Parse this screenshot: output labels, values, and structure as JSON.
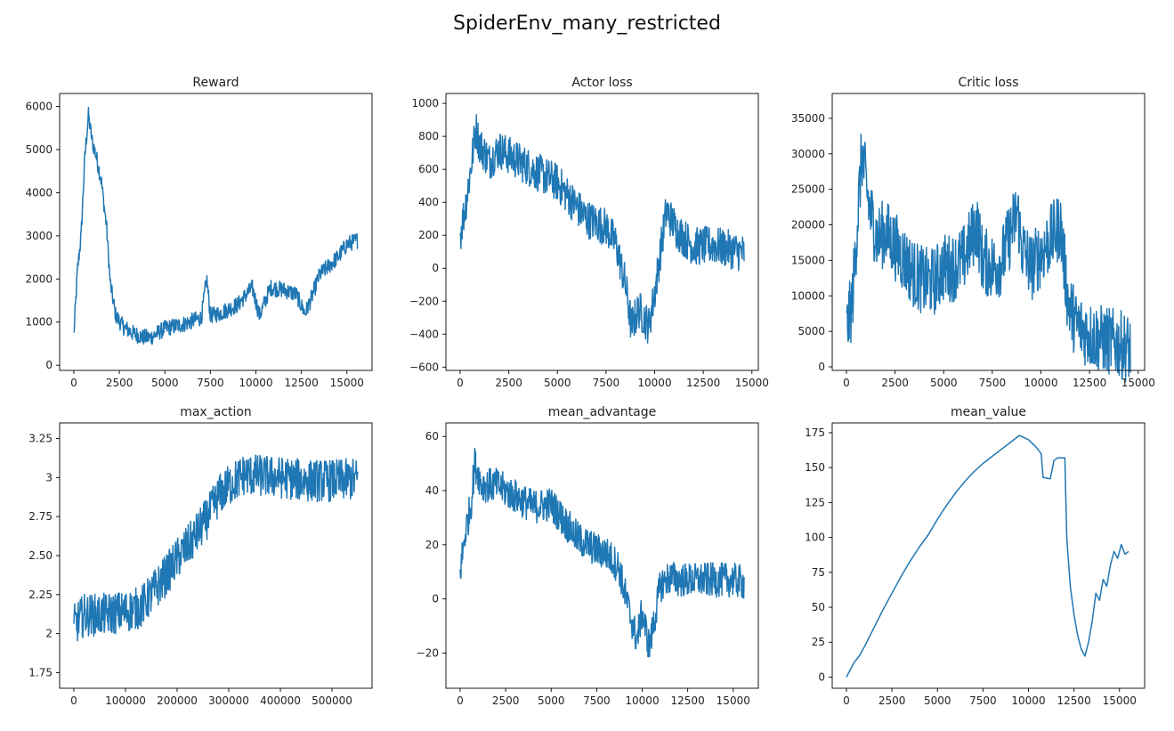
{
  "figure_title": "SpiderEnv_many_restricted",
  "colors": {
    "line": "#1f77b4",
    "axis": "#000000"
  },
  "chart_data": [
    {
      "type": "line",
      "title": "Reward",
      "xlabel": "",
      "ylabel": "",
      "xlim": [
        -780,
        16380
      ],
      "ylim": [
        -120,
        6300
      ],
      "xticks": [
        0,
        2500,
        5000,
        7500,
        10000,
        12500,
        15000
      ],
      "yticks": [
        0,
        1000,
        2000,
        3000,
        4000,
        5000,
        6000
      ],
      "noise": 0.06,
      "series": [
        {
          "x": [
            0,
            200,
            400,
            600,
            800,
            1000,
            1200,
            1500,
            1800,
            2000,
            2300,
            2700,
            3200,
            3800,
            4200,
            5000,
            6000,
            7000,
            7300,
            7500,
            8000,
            9000,
            9800,
            10200,
            10800,
            11500,
            12200,
            12700,
            13000,
            13500,
            14000,
            14500,
            15000,
            15600
          ],
          "y": [
            700,
            2200,
            3000,
            4800,
            5800,
            5200,
            4900,
            4300,
            3200,
            1900,
            1150,
            900,
            750,
            650,
            640,
            850,
            950,
            1100,
            2000,
            1150,
            1200,
            1400,
            1800,
            1150,
            1800,
            1750,
            1650,
            1200,
            1500,
            2100,
            2300,
            2500,
            2800,
            2900
          ]
        }
      ]
    },
    {
      "type": "line",
      "title": "Actor loss",
      "xlabel": "",
      "ylabel": "",
      "xlim": [
        -730,
        15330
      ],
      "ylim": [
        -620,
        1060
      ],
      "xticks": [
        0,
        2500,
        5000,
        7500,
        10000,
        12500,
        15000
      ],
      "yticks": [
        -600,
        -400,
        -200,
        0,
        200,
        400,
        600,
        800,
        1000
      ],
      "noise": 0.14,
      "series": [
        {
          "x": [
            0,
            300,
            600,
            800,
            1000,
            1500,
            2000,
            3000,
            4000,
            5000,
            5800,
            6500,
            7500,
            8000,
            8500,
            8800,
            9200,
            9700,
            10000,
            10600,
            11200,
            12000,
            13000,
            14000,
            14600
          ],
          "y": [
            200,
            400,
            650,
            850,
            750,
            650,
            720,
            650,
            580,
            520,
            400,
            300,
            250,
            150,
            -100,
            -350,
            -250,
            -350,
            -150,
            350,
            220,
            130,
            140,
            110,
            90
          ]
        }
      ]
    },
    {
      "type": "line",
      "title": "Critic loss",
      "xlabel": "",
      "ylabel": "",
      "xlim": [
        -730,
        15330
      ],
      "ylim": [
        -500,
        38500
      ],
      "xticks": [
        0,
        2500,
        5000,
        7500,
        10000,
        12500,
        15000
      ],
      "yticks": [
        0,
        5000,
        10000,
        15000,
        20000,
        25000,
        30000,
        35000
      ],
      "noise": 0.25,
      "series": [
        {
          "x": [
            0,
            300,
            600,
            800,
            1200,
            1600,
            2000,
            2500,
            3000,
            3500,
            4000,
            4500,
            5000,
            5500,
            6000,
            6700,
            7000,
            7600,
            8000,
            8800,
            9000,
            9500,
            10000,
            10500,
            11000,
            11400,
            11800,
            12500,
            13000,
            14000,
            14600
          ],
          "y": [
            5000,
            9000,
            22000,
            30000,
            22000,
            18000,
            19000,
            17000,
            15000,
            13000,
            12000,
            12000,
            14000,
            14000,
            15000,
            20000,
            15000,
            14000,
            15000,
            22000,
            17000,
            14000,
            16000,
            18000,
            20000,
            9000,
            6000,
            4500,
            4000,
            3200,
            2500
          ]
        }
      ]
    },
    {
      "type": "line",
      "title": "max_action",
      "xlabel": "",
      "ylabel": "",
      "xlim": [
        -27500,
        577500
      ],
      "ylim": [
        1.65,
        3.35
      ],
      "xticks": [
        0,
        100000,
        200000,
        300000,
        400000,
        500000
      ],
      "yticks": [
        1.75,
        2.0,
        2.25,
        2.5,
        2.75,
        3.0,
        3.25
      ],
      "noise": 0.16,
      "series": [
        {
          "x": [
            0,
            20000,
            50000,
            100000,
            130000,
            150000,
            180000,
            200000,
            230000,
            260000,
            280000,
            300000,
            330000,
            400000,
            450000,
            500000,
            550000
          ],
          "y": [
            2.05,
            2.12,
            2.12,
            2.14,
            2.17,
            2.25,
            2.38,
            2.48,
            2.6,
            2.75,
            2.88,
            2.95,
            3.02,
            3.0,
            2.98,
            2.98,
            2.99
          ]
        }
      ]
    },
    {
      "type": "line",
      "title": "mean_advantage",
      "xlabel": "",
      "ylabel": "",
      "xlim": [
        -780,
        16380
      ],
      "ylim": [
        -33,
        65
      ],
      "xticks": [
        0,
        2500,
        5000,
        7500,
        10000,
        12500,
        15000
      ],
      "yticks": [
        -20,
        0,
        20,
        40,
        60
      ],
      "noise": 0.13,
      "series": [
        {
          "x": [
            0,
            300,
            600,
            800,
            1200,
            2000,
            3000,
            4000,
            5000,
            5800,
            6500,
            7500,
            8000,
            8700,
            9300,
            9700,
            10000,
            10400,
            11000,
            11500,
            12000,
            13000,
            14000,
            15000,
            15600
          ],
          "y": [
            10,
            25,
            35,
            50,
            42,
            42,
            38,
            34,
            35,
            28,
            22,
            18,
            17,
            12,
            -5,
            -15,
            -5,
            -18,
            5,
            8,
            7,
            7,
            7,
            7,
            6
          ]
        }
      ]
    },
    {
      "type": "line",
      "title": "mean_value",
      "xlabel": "",
      "ylabel": "",
      "xlim": [
        -780,
        16380
      ],
      "ylim": [
        -8,
        182
      ],
      "xticks": [
        0,
        2500,
        5000,
        7500,
        10000,
        12500,
        15000
      ],
      "yticks": [
        0,
        25,
        50,
        75,
        100,
        125,
        150,
        175
      ],
      "noise": 0,
      "series": [
        {
          "x": [
            0,
            200,
            400,
            700,
            1000,
            1500,
            2000,
            2500,
            3000,
            3500,
            4000,
            4500,
            5000,
            5500,
            6000,
            6500,
            7000,
            7500,
            8000,
            8500,
            9000,
            9500,
            10000,
            10400,
            10700,
            10800,
            11200,
            11400,
            11600,
            12000,
            12100,
            12300,
            12500,
            12700,
            12900,
            13100,
            13300,
            13500,
            13700,
            13900,
            14100,
            14300,
            14500,
            14700,
            14900,
            15100,
            15300,
            15500
          ],
          "y": [
            0,
            5,
            10,
            15,
            22,
            35,
            48,
            60,
            72,
            83,
            93,
            102,
            113,
            123,
            132,
            140,
            147,
            153,
            158,
            163,
            168,
            173,
            170,
            165,
            160,
            143,
            142,
            155,
            157,
            157,
            100,
            65,
            45,
            30,
            20,
            15,
            25,
            40,
            60,
            55,
            70,
            65,
            80,
            90,
            85,
            95,
            88,
            90
          ]
        }
      ]
    }
  ]
}
